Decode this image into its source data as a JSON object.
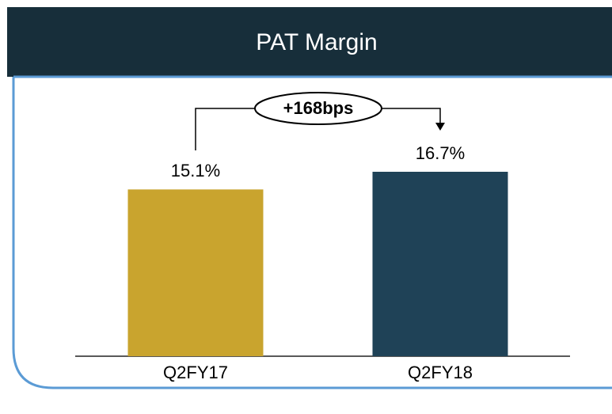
{
  "chart_data": {
    "type": "bar",
    "title": "PAT Margin",
    "categories": [
      "Q2FY17",
      "Q2FY18"
    ],
    "values": [
      15.1,
      16.7
    ],
    "value_labels": [
      "15.1%",
      "16.7%"
    ],
    "colors": [
      "#c9a42e",
      "#1f4257"
    ],
    "annotation": "+168bps"
  }
}
